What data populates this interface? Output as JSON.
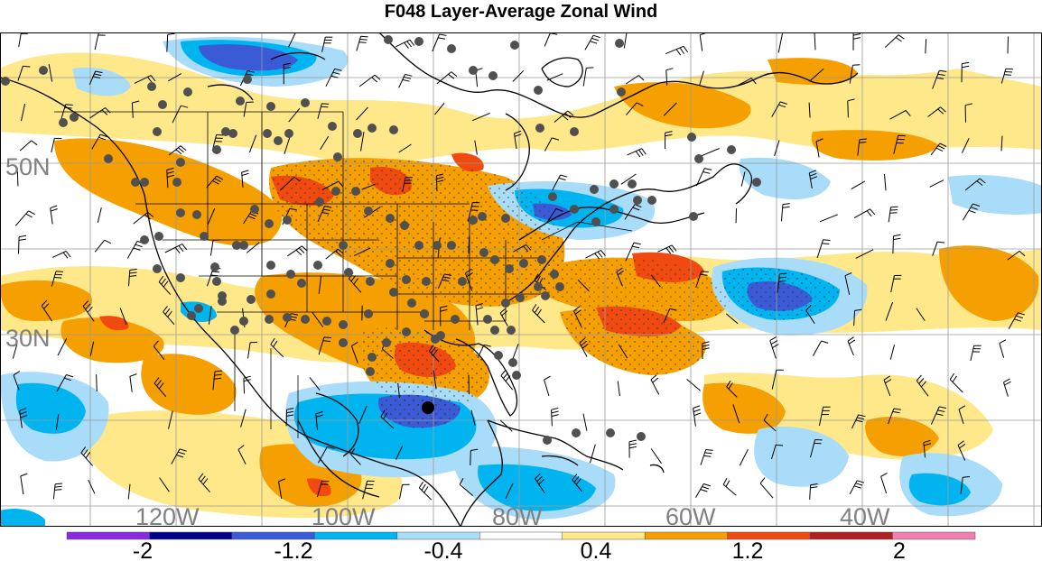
{
  "title": "F048 Layer-Average Zonal Wind",
  "lat_labels": [
    "50N",
    "30N"
  ],
  "lon_labels": [
    "120W",
    "100W",
    "80W",
    "60W",
    "40W"
  ],
  "colorbar": {
    "colors": [
      "#8a2be2",
      "#00008b",
      "#3b5bd6",
      "#00b4f0",
      "#a8dcf8",
      "#ffffff",
      "#ffe88a",
      "#f5a000",
      "#f04a10",
      "#b02020",
      "#f080b0"
    ],
    "tick_labels": [
      "-2",
      "-1.2",
      "-0.4",
      "0.4",
      "1.2",
      "2"
    ]
  },
  "colors": {
    "strong_neg": "#3b5bd6",
    "neg": "#00b4f0",
    "weak_neg": "#a8dcf8",
    "weak_pos": "#ffe88a",
    "pos": "#f5a000",
    "strong_pos": "#f04a10",
    "station": "#505050",
    "highlight_station": "#000000"
  }
}
